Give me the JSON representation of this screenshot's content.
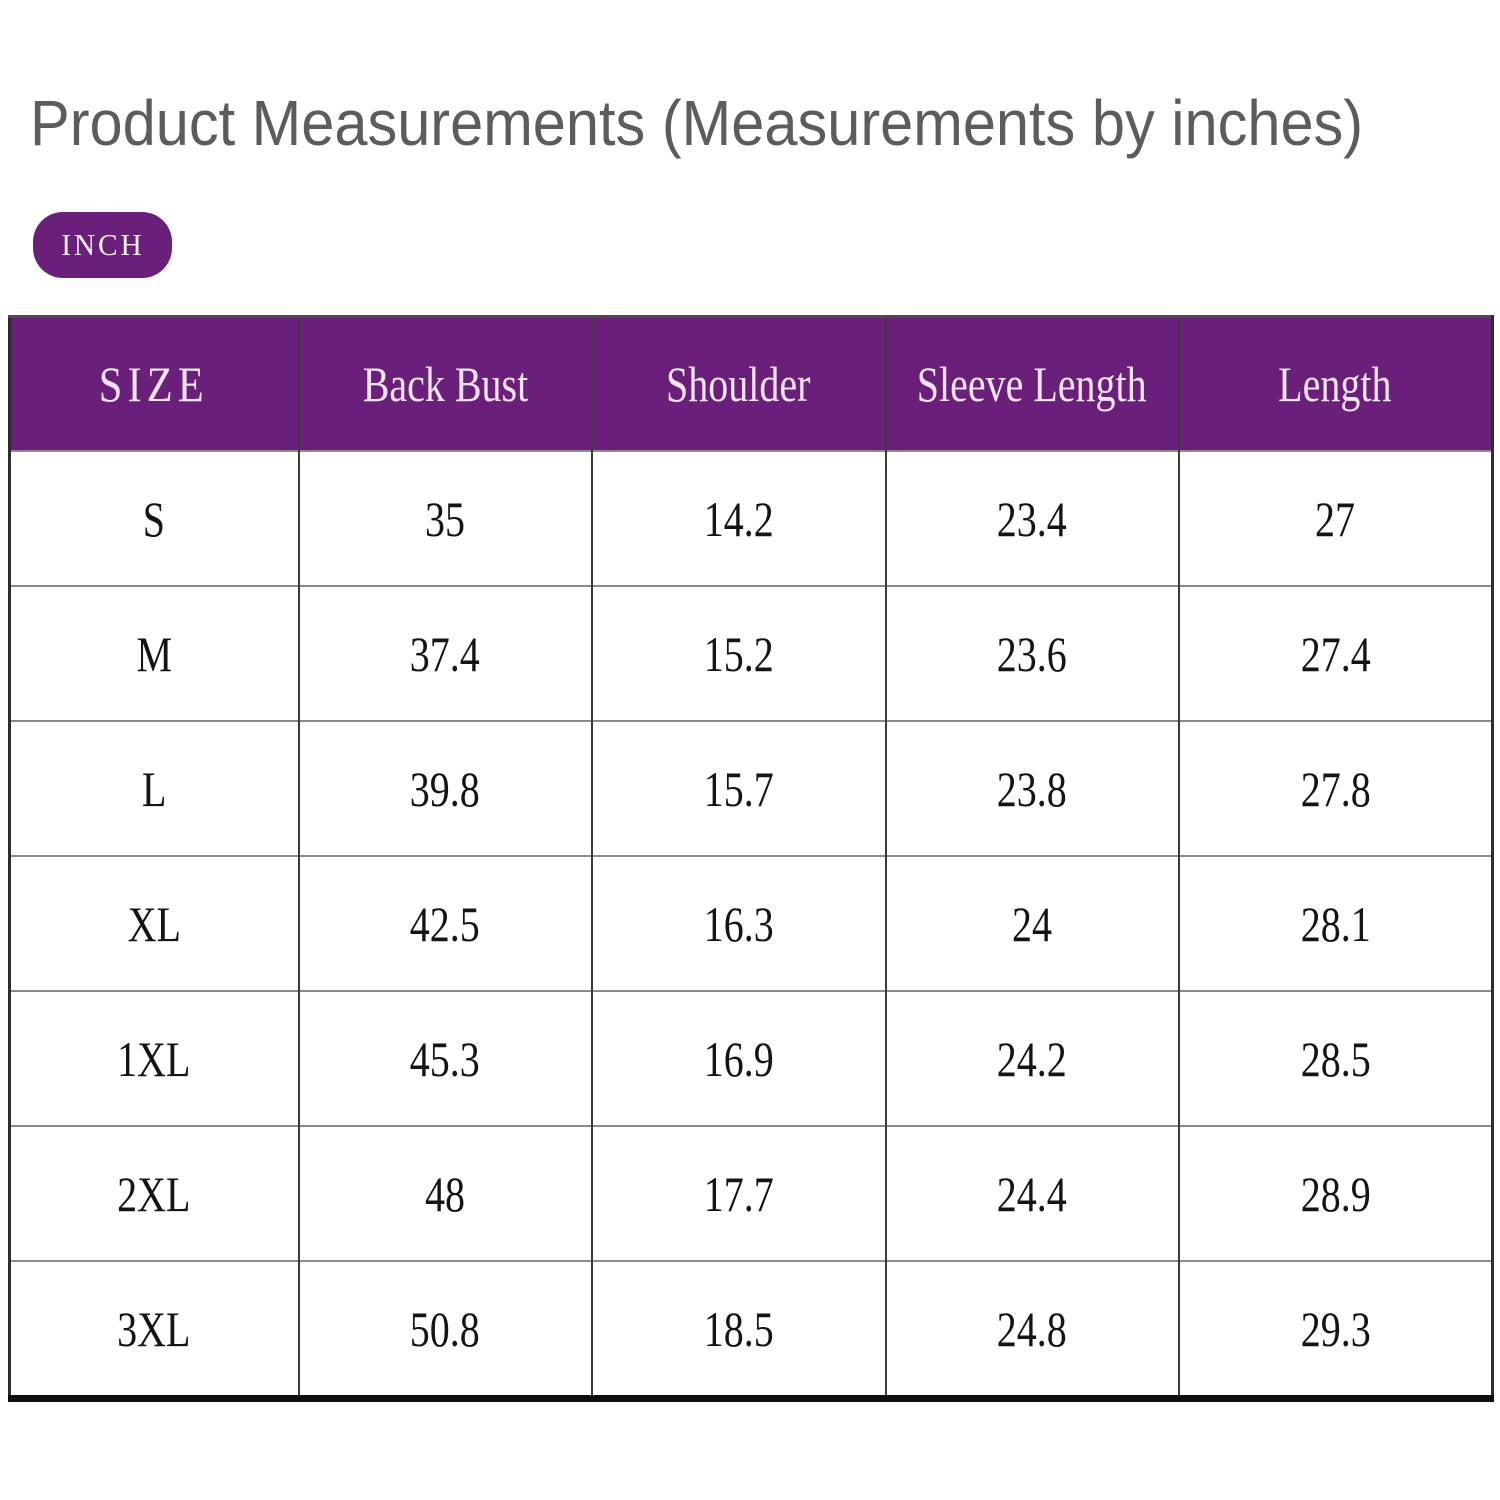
{
  "title": "Product Measurements (Measurements by inches)",
  "unit_badge": "INCH",
  "colors": {
    "accent_purple": "#6A1F7A",
    "title_gray": "#5C5C5C",
    "header_text": "#F2E4F2",
    "cell_text": "#141414",
    "row_line": "#8A8A8A",
    "column_line": "#3A3A3A",
    "outer_border": "#2D2D2D",
    "bottom_border": "#0E0E0E"
  },
  "table": {
    "headers": [
      "SIZE",
      "Back Bust",
      "Shoulder",
      "Sleeve Length",
      "Length"
    ],
    "rows": [
      [
        "S",
        "35",
        "14.2",
        "23.4",
        "27"
      ],
      [
        "M",
        "37.4",
        "15.2",
        "23.6",
        "27.4"
      ],
      [
        "L",
        "39.8",
        "15.7",
        "23.8",
        "27.8"
      ],
      [
        "XL",
        "42.5",
        "16.3",
        "24",
        "28.1"
      ],
      [
        "1XL",
        "45.3",
        "16.9",
        "24.2",
        "28.5"
      ],
      [
        "2XL",
        "48",
        "17.7",
        "24.4",
        "28.9"
      ],
      [
        "3XL",
        "50.8",
        "18.5",
        "24.8",
        "29.3"
      ]
    ]
  }
}
